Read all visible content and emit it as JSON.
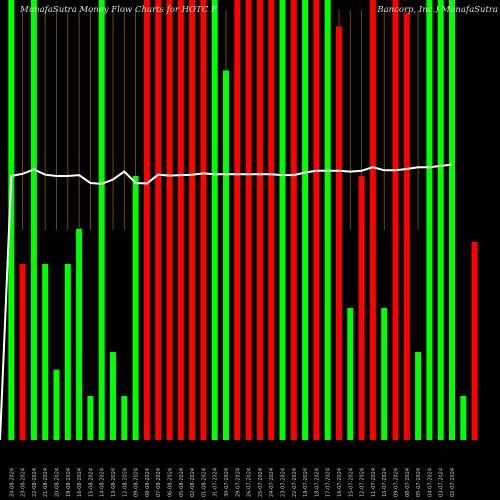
{
  "header": {
    "left": "MunafaSutra  Money Flow  Charts for HOTC                     F",
    "right": "Bancorp, Inc.) MunafaSutra"
  },
  "colors": {
    "background": "#000000",
    "up": "#00ff00",
    "down": "#ff0000",
    "line": "#ffffff",
    "grid": "#8a5a00",
    "label": "#cccccc"
  },
  "chart_data": {
    "type": "bar",
    "ylim": [
      0,
      100
    ],
    "categories": [
      "24-08-2024",
      "23-08-2024",
      "22-08-2024",
      "21-08-2024",
      "20-08-2024",
      "19-08-2024",
      "16-08-2024",
      "15-08-2024",
      "14-08-2024",
      "13-08-2024",
      "12-08-2024",
      "09-08-2024",
      "08-08-2024",
      "07-08-2024",
      "06-08-2024",
      "05-08-2024",
      "02-08-2024",
      "01-08-2024",
      "31-07-2024",
      "30-07-2024",
      "29-07-2024",
      "26-07-2024",
      "25-07-2024",
      "24-07-2024",
      "23-07-2024",
      "22-07-2024",
      "19-07-2024",
      "18-07-2024",
      "17-07-2024",
      "16-07-2024",
      "15-07-2024",
      "12-07-2024",
      "11-07-2024",
      "10-07-2024",
      "09-07-2024",
      "08-07-2024",
      "05-07-2024",
      "04-07-2024",
      "03-07-2024",
      "02-07-2024"
    ],
    "bars": [
      {
        "value": 100,
        "dir": "up"
      },
      {
        "value": 40,
        "dir": "down"
      },
      {
        "value": 100,
        "dir": "up"
      },
      {
        "value": 40,
        "dir": "up"
      },
      {
        "value": 16,
        "dir": "up"
      },
      {
        "value": 40,
        "dir": "up"
      },
      {
        "value": 48,
        "dir": "up"
      },
      {
        "value": 10,
        "dir": "up"
      },
      {
        "value": 100,
        "dir": "up"
      },
      {
        "value": 20,
        "dir": "up"
      },
      {
        "value": 10,
        "dir": "up"
      },
      {
        "value": 60,
        "dir": "up"
      },
      {
        "value": 100,
        "dir": "down"
      },
      {
        "value": 100,
        "dir": "down"
      },
      {
        "value": 100,
        "dir": "down"
      },
      {
        "value": 100,
        "dir": "down"
      },
      {
        "value": 100,
        "dir": "down"
      },
      {
        "value": 100,
        "dir": "down"
      },
      {
        "value": 100,
        "dir": "up"
      },
      {
        "value": 84,
        "dir": "up"
      },
      {
        "value": 100,
        "dir": "down"
      },
      {
        "value": 100,
        "dir": "down"
      },
      {
        "value": 100,
        "dir": "down"
      },
      {
        "value": 100,
        "dir": "down"
      },
      {
        "value": 100,
        "dir": "up"
      },
      {
        "value": 100,
        "dir": "down"
      },
      {
        "value": 100,
        "dir": "up"
      },
      {
        "value": 100,
        "dir": "down"
      },
      {
        "value": 100,
        "dir": "up"
      },
      {
        "value": 94,
        "dir": "down"
      },
      {
        "value": 30,
        "dir": "up"
      },
      {
        "value": 60,
        "dir": "down"
      },
      {
        "value": 100,
        "dir": "down"
      },
      {
        "value": 30,
        "dir": "up"
      },
      {
        "value": 100,
        "dir": "down"
      },
      {
        "value": 97,
        "dir": "down"
      },
      {
        "value": 20,
        "dir": "up"
      },
      {
        "value": 100,
        "dir": "up"
      },
      {
        "value": 100,
        "dir": "up"
      },
      {
        "value": 100,
        "dir": "up"
      }
    ],
    "trailing": [
      {
        "value": 10,
        "dir": "up"
      },
      {
        "value": 45,
        "dir": "down"
      }
    ],
    "line": [
      60,
      60.5,
      61.5,
      60.3,
      60,
      60,
      60.2,
      58.4,
      58.2,
      59.2,
      61,
      58.4,
      58.3,
      60.3,
      60.1,
      60.2,
      60.3,
      60.6,
      60.4,
      60.4,
      60.4,
      60.4,
      60.4,
      60.4,
      60.2,
      60.2,
      60.8,
      61.2,
      61.2,
      61.2,
      61,
      61.2,
      62,
      61.3,
      61.3,
      61.6,
      62,
      62,
      62.3,
      62.6
    ],
    "grid": true
  }
}
